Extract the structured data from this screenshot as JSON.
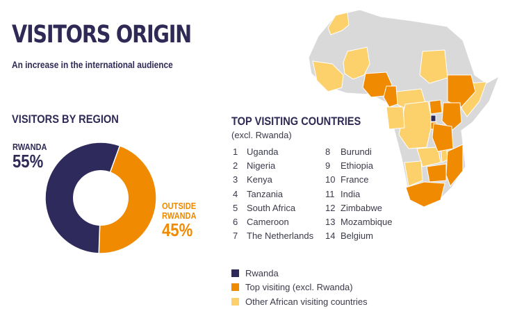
{
  "header": {
    "title": "VISITORS ORIGIN",
    "subtitle": "An increase in the international audience"
  },
  "colors": {
    "rwanda": "#2e2a5c",
    "top_visiting": "#f08a00",
    "other_african": "#fcd06a",
    "non_visiting": "#d9d9d9",
    "text_navy": "#2e2a55"
  },
  "region": {
    "title": "VISITORS BY REGION",
    "rwanda_label": "RWANDA",
    "rwanda_pct": "55%",
    "outside_label_1": "OUTSIDE",
    "outside_label_2": "RWANDA",
    "outside_pct": "45%"
  },
  "countries": {
    "title": "TOP VISITING COUNTRIES",
    "note": "(excl. Rwanda)",
    "list": [
      {
        "rank": "1",
        "name": "Uganda"
      },
      {
        "rank": "2",
        "name": "Nigeria"
      },
      {
        "rank": "3",
        "name": "Kenya"
      },
      {
        "rank": "4",
        "name": "Tanzania"
      },
      {
        "rank": "5",
        "name": "South Africa"
      },
      {
        "rank": "6",
        "name": "Cameroon"
      },
      {
        "rank": "7",
        "name": "The Netherlands"
      },
      {
        "rank": "8",
        "name": "Burundi"
      },
      {
        "rank": "9",
        "name": "Ethiopia"
      },
      {
        "rank": "10",
        "name": "France"
      },
      {
        "rank": "11",
        "name": "India"
      },
      {
        "rank": "12",
        "name": "Zimbabwe"
      },
      {
        "rank": "13",
        "name": "Mozambique"
      },
      {
        "rank": "14",
        "name": "Belgium"
      }
    ]
  },
  "legend": {
    "rwanda": "Rwanda",
    "top_visiting": "Top visiting (excl. Rwanda)",
    "other_african": "Other African visiting countries"
  },
  "chart_data": {
    "type": "pie",
    "title": "VISITORS BY REGION",
    "categories": [
      "RWANDA",
      "OUTSIDE RWANDA"
    ],
    "values": [
      55,
      45
    ],
    "colors": [
      "#2e2a5c",
      "#f08a00"
    ]
  },
  "map": {
    "top_visiting_african": [
      "Uganda",
      "Nigeria",
      "Kenya",
      "Tanzania",
      "South Africa",
      "Cameroon",
      "Burundi",
      "Ethiopia",
      "Zimbabwe",
      "Mozambique"
    ],
    "highlight": "Rwanda"
  }
}
